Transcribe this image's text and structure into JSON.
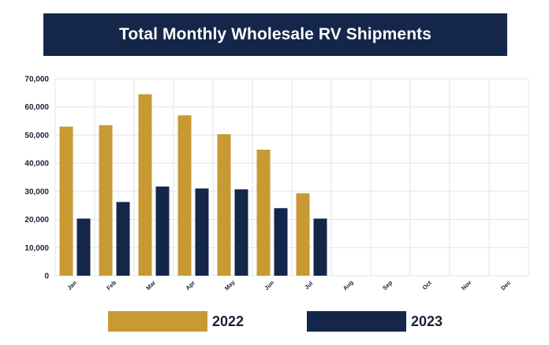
{
  "chart_data": {
    "type": "bar",
    "title": "Total Monthly Wholesale RV Shipments",
    "categories": [
      "Jan",
      "Feb",
      "Mar",
      "Apr",
      "May",
      "Jun",
      "Jul",
      "Aug",
      "Sep",
      "Oct",
      "Nov",
      "Dec"
    ],
    "series": [
      {
        "name": "2022",
        "color": "#c99a33",
        "values": [
          53000,
          53500,
          64500,
          57000,
          50300,
          44800,
          29300,
          null,
          null,
          null,
          null,
          null
        ]
      },
      {
        "name": "2023",
        "color": "#14264a",
        "values": [
          20300,
          26200,
          31700,
          31000,
          30700,
          24000,
          20300,
          null,
          null,
          null,
          null,
          null
        ]
      }
    ],
    "ylim": [
      0,
      70000
    ],
    "yticks": [
      "0",
      "10,000",
      "20,000",
      "30,000",
      "40,000",
      "50,000",
      "60,000",
      "70,000"
    ],
    "grid": true,
    "legend_position": "bottom"
  },
  "colors": {
    "title_bg": "#14264a",
    "grid": "#dde7ea"
  }
}
